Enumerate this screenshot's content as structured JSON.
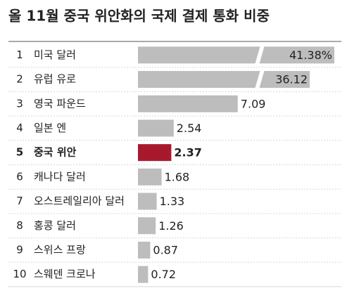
{
  "chart_data": {
    "type": "bar",
    "orientation": "horizontal",
    "title": "올 11월 중국 위안화의 국제 결제 통화 비중",
    "ranks": [
      1,
      2,
      3,
      4,
      5,
      6,
      7,
      8,
      9,
      10
    ],
    "categories": [
      "미국 달러",
      "유럽 유로",
      "영국 파운드",
      "일본 엔",
      "중국 위안",
      "캐나다 달러",
      "오스트레일리아 달러",
      "홍콩 달러",
      "스위스 프랑",
      "스웨덴 크로나"
    ],
    "values": [
      41.38,
      36.12,
      7.09,
      2.54,
      2.37,
      1.68,
      1.33,
      1.26,
      0.87,
      0.72
    ],
    "value_labels": [
      "41.38%",
      "36.12",
      "7.09",
      "2.54",
      "2.37",
      "1.68",
      "1.33",
      "1.26",
      "0.87",
      "0.72"
    ],
    "color": "#bdbdbd",
    "highlight_color": "#a8192e",
    "highlight": 4
  }
}
